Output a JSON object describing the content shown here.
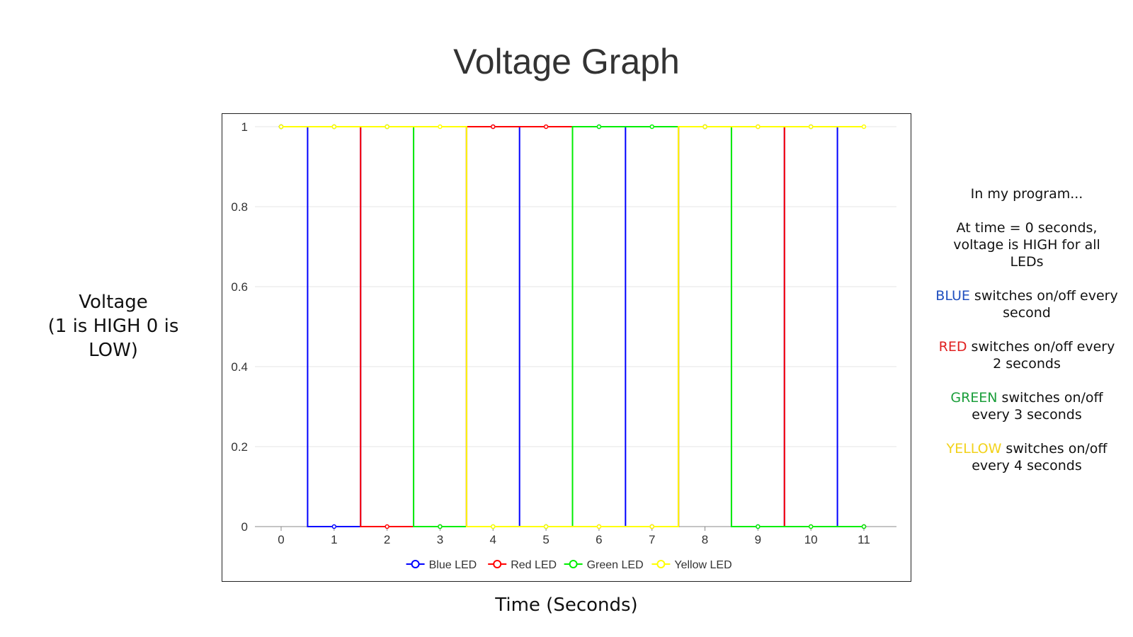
{
  "title": "Voltage Graph",
  "ylabel_lines": [
    "Voltage",
    "(1 is HIGH 0 is",
    "LOW)"
  ],
  "xlabel": "Time (Seconds)",
  "notes": {
    "intro": "In my program...",
    "start": "At time = 0 seconds, voltage is HIGH for all LEDs",
    "blue_word": "BLUE",
    "blue_rest": " switches on/off every second",
    "red_word": "RED",
    "red_rest": " switches on/off every 2 seconds",
    "green_word": "GREEN",
    "green_rest": " switches on/off every 3 seconds",
    "yellow_word": "YELLOW",
    "yellow_rest": " switches on/off every 4 seconds"
  },
  "chart_data": {
    "type": "line",
    "title": "",
    "xlabel": "",
    "ylabel": "",
    "x": [
      0,
      1,
      2,
      3,
      4,
      5,
      6,
      7,
      8,
      9,
      10,
      11
    ],
    "ylim": [
      0,
      1
    ],
    "yticks": [
      "0",
      "0.2",
      "0.4",
      "0.6",
      "0.8",
      "1"
    ],
    "grid": true,
    "legend": "bottom",
    "series": [
      {
        "name": "Blue LED",
        "color": "#0000ff",
        "values": [
          1,
          0,
          1,
          0,
          1,
          0,
          1,
          0,
          1,
          0,
          1,
          0
        ]
      },
      {
        "name": "Red LED",
        "color": "#ff0000",
        "values": [
          1,
          1,
          0,
          0,
          1,
          1,
          0,
          0,
          1,
          1,
          0,
          0
        ]
      },
      {
        "name": "Green LED",
        "color": "#00ee00",
        "values": [
          1,
          1,
          1,
          0,
          0,
          0,
          1,
          1,
          1,
          0,
          0,
          0
        ]
      },
      {
        "name": "Yellow LED",
        "color": "#ffff00",
        "values": [
          1,
          1,
          1,
          1,
          0,
          0,
          0,
          0,
          1,
          1,
          1,
          1
        ]
      }
    ]
  }
}
